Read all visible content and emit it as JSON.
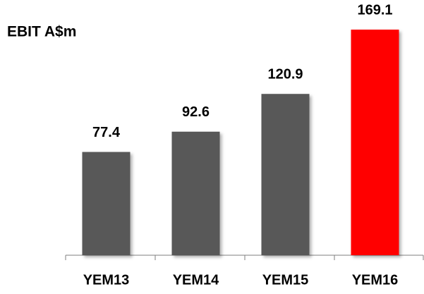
{
  "chart_data": {
    "type": "bar",
    "title": "EBIT A$m",
    "categories": [
      "YEM13",
      "YEM14",
      "YEM15",
      "YEM16"
    ],
    "values": [
      77.4,
      92.6,
      120.9,
      169.1
    ],
    "colors": [
      "#595959",
      "#595959",
      "#595959",
      "#ff0000"
    ]
  }
}
